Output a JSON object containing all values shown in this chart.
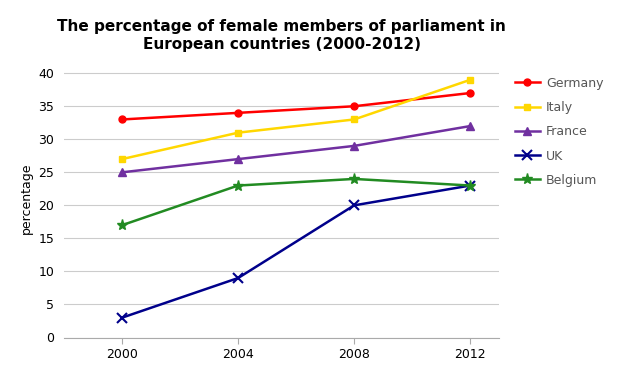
{
  "title": "The percentage of female members of parliament in\nEuropean countries (2000-2012)",
  "ylabel": "percentage",
  "years": [
    2000,
    2004,
    2008,
    2012
  ],
  "series": [
    {
      "label": "Germany",
      "color": "#ff0000",
      "marker": "o",
      "markersize": 5,
      "values": [
        33,
        34,
        35,
        37
      ]
    },
    {
      "label": "Italy",
      "color": "#ffd700",
      "marker": "s",
      "markersize": 5,
      "values": [
        27,
        31,
        33,
        39
      ]
    },
    {
      "label": "France",
      "color": "#7030a0",
      "marker": "^",
      "markersize": 6,
      "values": [
        25,
        27,
        29,
        32
      ]
    },
    {
      "label": "UK",
      "color": "#00008b",
      "marker": "x",
      "markersize": 7,
      "values": [
        3,
        9,
        20,
        23
      ]
    },
    {
      "label": "Belgium",
      "color": "#228b22",
      "marker": "*",
      "markersize": 8,
      "values": [
        17,
        23,
        24,
        23
      ]
    }
  ],
  "ylim": [
    0,
    42
  ],
  "yticks": [
    0,
    5,
    10,
    15,
    20,
    25,
    30,
    35,
    40
  ],
  "xticks": [
    2000,
    2004,
    2008,
    2012
  ],
  "xlim": [
    1998,
    2013
  ],
  "background_color": "#ffffff",
  "grid_color": "#cccccc",
  "title_fontsize": 11,
  "axis_label_fontsize": 9,
  "legend_fontsize": 9,
  "tick_fontsize": 9,
  "linewidth": 1.8
}
